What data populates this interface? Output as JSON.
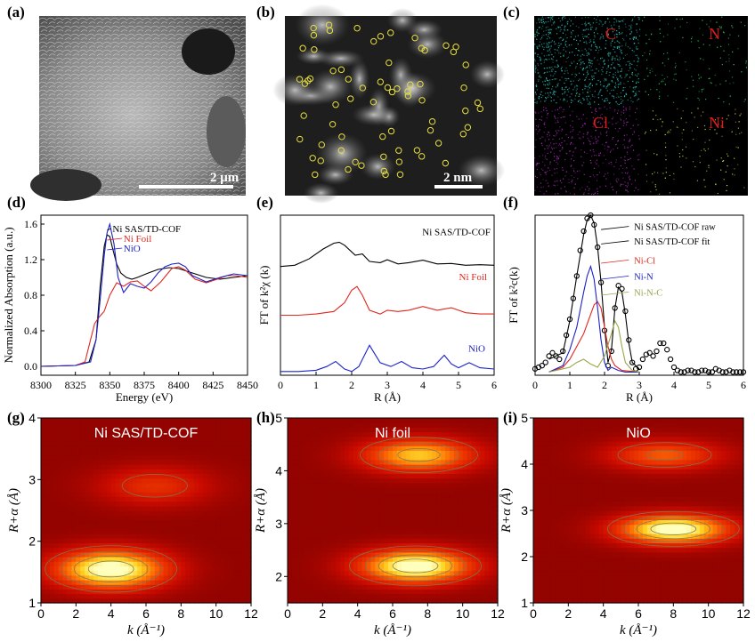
{
  "panels": {
    "a": {
      "label": "(a)",
      "scale": "2 μm"
    },
    "b": {
      "label": "(b)",
      "scale": "2 nm"
    },
    "c": {
      "label": "(c)",
      "elements": [
        "C",
        "N",
        "Cl",
        "Ni"
      ]
    },
    "d": {
      "label": "(d)"
    },
    "e": {
      "label": "(e)"
    },
    "f": {
      "label": "(f)"
    },
    "g": {
      "label": "(g)",
      "title": "Ni SAS/TD-COF"
    },
    "h": {
      "label": "(h)",
      "title": "Ni foil"
    },
    "i": {
      "label": "(i)",
      "title": "NiO"
    }
  },
  "colors": {
    "black": "#000000",
    "red": "#e0281e",
    "blue": "#1c22c8",
    "olive": "#9aa64a",
    "scalebar": "#ffffff",
    "element_label": "#e41a1a"
  },
  "chart_data": [
    {
      "id": "d",
      "type": "line",
      "xlabel": "Energy (eV)",
      "ylabel": "Normalized Absorption (a.u.)",
      "xlim": [
        8300,
        8450
      ],
      "ylim": [
        -0.1,
        1.7
      ],
      "xticks": [
        "8300",
        "8325",
        "8350",
        "8375",
        "8400",
        "8425",
        "8450"
      ],
      "yticks": [
        "0.0",
        "0.4",
        "0.8",
        "1.2",
        "1.6"
      ],
      "series": [
        {
          "name": "Ni SAS/TD-COF",
          "color": "#000000",
          "x": [
            8300,
            8325,
            8335,
            8340,
            8343,
            8346,
            8348,
            8350,
            8352,
            8355,
            8358,
            8362,
            8366,
            8370,
            8378,
            8385,
            8393,
            8400,
            8410,
            8420,
            8430,
            8440,
            8450
          ],
          "y": [
            0.0,
            0.01,
            0.05,
            0.3,
            0.9,
            1.35,
            1.48,
            1.46,
            1.33,
            1.15,
            1.05,
            1.0,
            0.98,
            1.0,
            1.05,
            1.09,
            1.11,
            1.1,
            1.05,
            1.0,
            0.98,
            1.0,
            1.02
          ]
        },
        {
          "name": "Ni Foil",
          "color": "#e0281e",
          "x": [
            8300,
            8325,
            8332,
            8336,
            8339,
            8342,
            8346,
            8350,
            8355,
            8360,
            8365,
            8370,
            8375,
            8380,
            8387,
            8395,
            8400,
            8405,
            8412,
            8420,
            8428,
            8435,
            8442,
            8450
          ],
          "y": [
            0.0,
            0.01,
            0.05,
            0.3,
            0.48,
            0.55,
            0.62,
            0.8,
            0.94,
            0.9,
            0.95,
            0.96,
            0.9,
            0.85,
            0.95,
            1.1,
            1.12,
            1.08,
            0.98,
            0.94,
            0.98,
            1.02,
            1.02,
            1.0
          ]
        },
        {
          "name": "NiO",
          "color": "#1c22c8",
          "x": [
            8300,
            8325,
            8336,
            8340,
            8343,
            8346,
            8348,
            8350,
            8353,
            8356,
            8360,
            8365,
            8370,
            8375,
            8380,
            8385,
            8390,
            8395,
            8400,
            8405,
            8410,
            8420,
            8430,
            8440,
            8450
          ],
          "y": [
            0.0,
            0.01,
            0.05,
            0.3,
            0.75,
            1.25,
            1.5,
            1.6,
            1.38,
            1.0,
            0.83,
            0.93,
            0.9,
            0.88,
            0.95,
            1.05,
            1.12,
            1.15,
            1.16,
            1.12,
            1.02,
            0.95,
            1.0,
            1.04,
            1.02
          ]
        }
      ]
    },
    {
      "id": "e",
      "type": "line",
      "xlabel": "R (Å)",
      "ylabel": "FT of k²χ (k)",
      "xlim": [
        0,
        6
      ],
      "ylim": [
        0,
        6.4
      ],
      "xticks": [
        "0",
        "1",
        "2",
        "3",
        "4",
        "5",
        "6"
      ],
      "series": [
        {
          "name": "Ni SAS/TD-COF",
          "color": "#000000",
          "x": [
            0,
            0.4,
            0.8,
            1.2,
            1.5,
            1.65,
            1.8,
            2.1,
            2.3,
            2.5,
            2.8,
            3.0,
            3.3,
            3.6,
            4.0,
            4.4,
            4.8,
            5.2,
            5.6,
            6.0
          ],
          "y": [
            4.35,
            4.4,
            4.65,
            5.05,
            5.28,
            5.32,
            5.2,
            4.8,
            4.85,
            4.55,
            4.5,
            4.62,
            4.45,
            4.5,
            4.6,
            4.45,
            4.47,
            4.4,
            4.42,
            4.4
          ]
        },
        {
          "name": "Ni Foil",
          "color": "#e0281e",
          "x": [
            0,
            0.5,
            1.0,
            1.5,
            1.8,
            2.0,
            2.15,
            2.3,
            2.5,
            2.8,
            3.0,
            3.3,
            3.6,
            4.0,
            4.4,
            4.8,
            5.2,
            5.6,
            6.0
          ],
          "y": [
            2.4,
            2.4,
            2.45,
            2.55,
            2.9,
            3.4,
            3.55,
            3.2,
            2.6,
            2.45,
            2.6,
            2.55,
            2.6,
            2.75,
            2.6,
            2.7,
            2.5,
            2.45,
            2.45
          ]
        },
        {
          "name": "NiO",
          "color": "#1c22c8",
          "x": [
            0,
            0.5,
            1.0,
            1.3,
            1.55,
            1.8,
            2.0,
            2.2,
            2.5,
            2.8,
            3.1,
            3.4,
            3.7,
            4.0,
            4.3,
            4.6,
            4.8,
            5.0,
            5.3,
            5.6,
            6.0
          ],
          "y": [
            0.15,
            0.15,
            0.2,
            0.35,
            0.55,
            0.25,
            0.15,
            0.35,
            1.2,
            0.5,
            0.35,
            0.55,
            0.3,
            0.25,
            0.35,
            0.8,
            0.45,
            0.3,
            0.5,
            0.3,
            0.25
          ]
        }
      ]
    },
    {
      "id": "f",
      "type": "line",
      "xlabel": "R (Å)",
      "ylabel": "FT of k²c(k)",
      "xlim": [
        0,
        6
      ],
      "ylim": [
        0,
        1.0
      ],
      "xticks": [
        "0",
        "1",
        "2",
        "3",
        "4",
        "5",
        "6"
      ],
      "series": [
        {
          "name": "Ni SAS/TD-COF raw",
          "color": "#000000",
          "style": "circles",
          "x": [
            0,
            0.1,
            0.2,
            0.3,
            0.4,
            0.5,
            0.6,
            0.7,
            0.8,
            0.9,
            1.0,
            1.1,
            1.2,
            1.3,
            1.4,
            1.5,
            1.6,
            1.7,
            1.8,
            1.9,
            2.0,
            2.1,
            2.2,
            2.3,
            2.4,
            2.5,
            2.6,
            2.7,
            2.8,
            2.9,
            3.0,
            3.1,
            3.2,
            3.3,
            3.4,
            3.5,
            3.6,
            3.7,
            3.8,
            3.9,
            4.0,
            4.1,
            4.2,
            4.3,
            4.4,
            4.5,
            4.6,
            4.7,
            4.8,
            4.9,
            5.0,
            5.1,
            5.2,
            5.3,
            5.4,
            5.5,
            5.6,
            5.7,
            5.8,
            5.9,
            6.0
          ],
          "y": [
            0.04,
            0.05,
            0.06,
            0.08,
            0.12,
            0.14,
            0.12,
            0.1,
            0.15,
            0.25,
            0.35,
            0.48,
            0.62,
            0.78,
            0.9,
            0.98,
            1.0,
            0.94,
            0.8,
            0.58,
            0.28,
            0.06,
            0.15,
            0.42,
            0.56,
            0.54,
            0.4,
            0.22,
            0.08,
            0.04,
            0.05,
            0.1,
            0.13,
            0.14,
            0.12,
            0.15,
            0.2,
            0.2,
            0.16,
            0.1,
            0.05,
            0.03,
            0.02,
            0.02,
            0.03,
            0.03,
            0.02,
            0.02,
            0.03,
            0.03,
            0.02,
            0.02,
            0.04,
            0.03,
            0.02,
            0.02,
            0.03,
            0.02,
            0.02,
            0.02,
            0.02
          ]
        },
        {
          "name": "Ni SAS/TD-COF fit",
          "color": "#000000",
          "x": [
            0.4,
            0.6,
            0.8,
            1.0,
            1.2,
            1.4,
            1.5,
            1.6,
            1.7,
            1.8,
            1.9,
            2.0,
            2.1,
            2.2,
            2.3,
            2.4,
            2.5,
            2.6,
            2.7,
            2.8,
            3.0
          ],
          "y": [
            0.1,
            0.12,
            0.14,
            0.34,
            0.62,
            0.88,
            0.97,
            1.0,
            0.95,
            0.8,
            0.58,
            0.3,
            0.08,
            0.16,
            0.42,
            0.55,
            0.52,
            0.38,
            0.2,
            0.08,
            0.04
          ]
        },
        {
          "name": "Ni-Cl",
          "color": "#e0281e",
          "x": [
            0.4,
            0.8,
            1.0,
            1.2,
            1.4,
            1.6,
            1.7,
            1.8,
            1.9,
            2.0,
            2.1,
            2.2,
            2.3,
            2.5,
            3.0
          ],
          "y": [
            0.02,
            0.05,
            0.1,
            0.18,
            0.26,
            0.38,
            0.44,
            0.46,
            0.42,
            0.3,
            0.18,
            0.1,
            0.06,
            0.03,
            0.02
          ]
        },
        {
          "name": "Ni-N",
          "color": "#1c22c8",
          "x": [
            0.4,
            0.8,
            1.0,
            1.2,
            1.4,
            1.5,
            1.6,
            1.7,
            1.8,
            1.9,
            2.0,
            2.1,
            2.2,
            2.4,
            2.6,
            3.0
          ],
          "y": [
            0.02,
            0.06,
            0.16,
            0.3,
            0.52,
            0.62,
            0.68,
            0.6,
            0.42,
            0.22,
            0.08,
            0.03,
            0.05,
            0.03,
            0.02,
            0.02
          ]
        },
        {
          "name": "Ni-N-C",
          "color": "#9aa64a",
          "x": [
            0.4,
            0.8,
            1.0,
            1.2,
            1.4,
            1.6,
            1.8,
            2.0,
            2.2,
            2.3,
            2.4,
            2.5,
            2.6,
            2.8,
            3.0
          ],
          "y": [
            0.02,
            0.04,
            0.05,
            0.08,
            0.1,
            0.07,
            0.05,
            0.12,
            0.26,
            0.34,
            0.3,
            0.18,
            0.08,
            0.03,
            0.02
          ]
        }
      ]
    },
    {
      "id": "g",
      "type": "heatmap",
      "xlabel": "k (Å⁻¹)",
      "ylabel": "R+α (Å)",
      "xlim": [
        0,
        12
      ],
      "ylim": [
        1,
        4
      ],
      "xticks": [
        "0",
        "2",
        "4",
        "6",
        "8",
        "10",
        "12"
      ],
      "yticks": [
        "1",
        "2",
        "3",
        "4"
      ],
      "peaks": [
        {
          "k": 4.0,
          "r": 1.55,
          "amp": 1.0
        },
        {
          "k": 6.5,
          "r": 2.9,
          "amp": 0.35
        }
      ]
    },
    {
      "id": "h",
      "type": "heatmap",
      "xlabel": "k (Å⁻¹)",
      "ylabel": "R+α (Å)",
      "xlim": [
        0,
        12
      ],
      "ylim": [
        1.5,
        5
      ],
      "xticks": [
        "0",
        "2",
        "4",
        "6",
        "8",
        "10",
        "12"
      ],
      "yticks": [
        "2",
        "3",
        "4",
        "5"
      ],
      "peaks": [
        {
          "k": 7.3,
          "r": 2.2,
          "amp": 1.0
        },
        {
          "k": 7.5,
          "r": 4.3,
          "amp": 0.75
        }
      ]
    },
    {
      "id": "i",
      "type": "heatmap",
      "xlabel": "k (Å⁻¹)",
      "ylabel": "R+α (Å)",
      "xlim": [
        0,
        12
      ],
      "ylim": [
        1,
        5
      ],
      "xticks": [
        "0",
        "2",
        "4",
        "6",
        "8",
        "10",
        "12"
      ],
      "yticks": [
        "1",
        "2",
        "3",
        "4",
        "5"
      ],
      "peaks": [
        {
          "k": 8.0,
          "r": 2.6,
          "amp": 1.0
        },
        {
          "k": 7.5,
          "r": 4.2,
          "amp": 0.5
        }
      ]
    }
  ]
}
